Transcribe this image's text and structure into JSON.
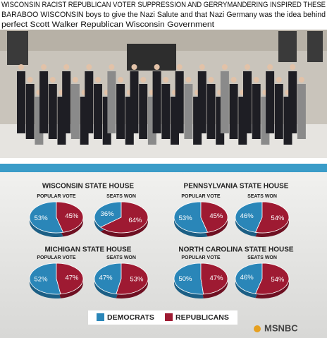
{
  "caption": [
    "WISCONSIN RACIST REPUBLICAN VOTER SUPPRESSION AND GERRYMANDERING INSPIRED THESE",
    "BARABOO WISCONSIN boys to give the Nazi Salute and that Nazi Germany was the idea behind",
    "perfect Scott Walker Republican Wisconsin Government"
  ],
  "panels": [
    {
      "title": "WISCONSIN STATE HOUSE",
      "charts": [
        {
          "label": "POPULAR VOTE",
          "values": [
            53,
            45
          ],
          "value_labels": [
            "53%",
            "45%"
          ]
        },
        {
          "label": "SEATS WON",
          "values": [
            36,
            64
          ],
          "value_labels": [
            "36%",
            "64%"
          ]
        }
      ]
    },
    {
      "title": "PENNSYLVANIA STATE HOUSE",
      "charts": [
        {
          "label": "POPULAR VOTE",
          "values": [
            53,
            45
          ],
          "value_labels": [
            "53%",
            "45%"
          ]
        },
        {
          "label": "SEATS WON",
          "values": [
            46,
            54
          ],
          "value_labels": [
            "46%",
            "54%"
          ]
        }
      ]
    },
    {
      "title": "MICHIGAN STATE HOUSE",
      "charts": [
        {
          "label": "POPULAR VOTE",
          "values": [
            52,
            47
          ],
          "value_labels": [
            "52%",
            "47%"
          ]
        },
        {
          "label": "SEATS WON",
          "values": [
            47,
            53
          ],
          "value_labels": [
            "47%",
            "53%"
          ]
        }
      ]
    },
    {
      "title": "NORTH CAROLINA STATE HOUSE",
      "charts": [
        {
          "label": "POPULAR VOTE",
          "values": [
            50,
            47
          ],
          "value_labels": [
            "50%",
            "47%"
          ]
        },
        {
          "label": "SEATS WON",
          "values": [
            46,
            54
          ],
          "value_labels": [
            "46%",
            "54%"
          ]
        }
      ]
    }
  ],
  "legend": [
    {
      "name": "DEMOCRATS",
      "color": "#2a86b8"
    },
    {
      "name": "REPUBLICANS",
      "color": "#9e1a32"
    }
  ],
  "logo": "MSNBC"
}
